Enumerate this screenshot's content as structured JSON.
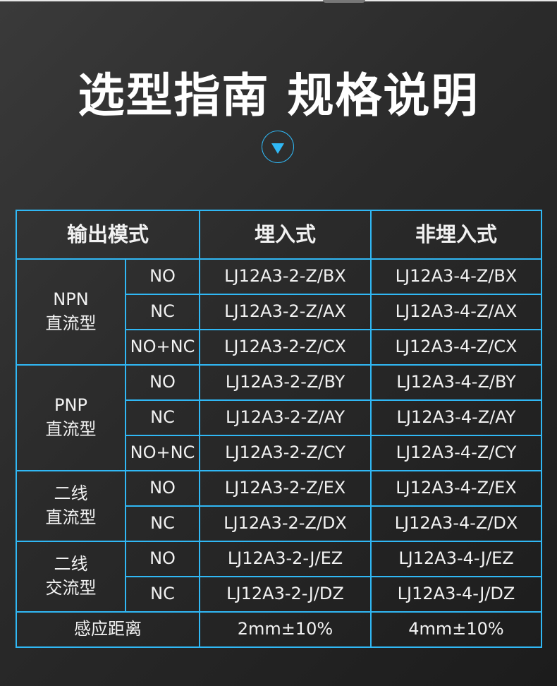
{
  "title": "选型指南 规格说明",
  "header": [
    "输出模式",
    "埋入式",
    "非埋入式"
  ],
  "groups": [
    {
      "line1": "NPN",
      "line2": "直流型",
      "rows": [
        [
          "NO",
          "LJ12A3-2-Z/BX",
          "LJ12A3-4-Z/BX"
        ],
        [
          "NC",
          "LJ12A3-2-Z/AX",
          "LJ12A3-4-Z/AX"
        ],
        [
          "NO+NC",
          "LJ12A3-2-Z/CX",
          "LJ12A3-4-Z/CX"
        ]
      ]
    },
    {
      "line1": "PNP",
      "line2": "直流型",
      "rows": [
        [
          "NO",
          "LJ12A3-2-Z/BY",
          "LJ12A3-4-Z/BY"
        ],
        [
          "NC",
          "LJ12A3-2-Z/AY",
          "LJ12A3-4-Z/AY"
        ],
        [
          "NO+NC",
          "LJ12A3-2-Z/CY",
          "LJ12A3-4-Z/CY"
        ]
      ]
    },
    {
      "line1": "二线",
      "line2": "直流型",
      "rows": [
        [
          "NO",
          "LJ12A3-2-Z/EX",
          "LJ12A3-4-Z/EX"
        ],
        [
          "NC",
          "LJ12A3-2-Z/DX",
          "LJ12A3-4-Z/DX"
        ]
      ]
    },
    {
      "line1": "二线",
      "line2": "交流型",
      "rows": [
        [
          "NO",
          "LJ12A3-2-J/EZ",
          "LJ12A3-4-J/EZ"
        ],
        [
          "NC",
          "LJ12A3-2-J/DZ",
          "LJ12A3-4-J/DZ"
        ]
      ]
    }
  ],
  "footer": [
    "感应距离",
    "2mm±10%",
    "4mm±10%"
  ],
  "colors": {
    "accent": "#30b8f5",
    "background": "#2a2a2a"
  },
  "icons": {
    "arrow": "down-triangle-circle-icon"
  }
}
